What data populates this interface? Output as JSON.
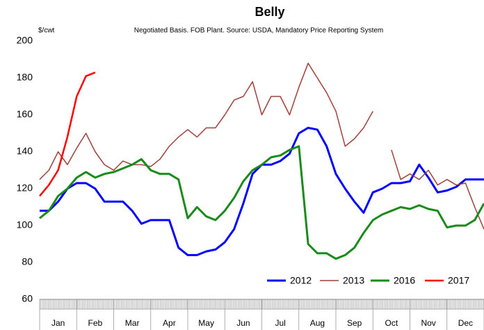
{
  "chart_data": {
    "type": "line",
    "title": "Belly",
    "subtitle": "Negotiated Basis. FOB Plant. Source: USDA, Mandatory Price Reporting System",
    "y_label": "$/cwt",
    "x": [
      0,
      0.25,
      0.5,
      0.75,
      1,
      1.25,
      1.5,
      1.75,
      2,
      2.25,
      2.5,
      2.75,
      3,
      3.25,
      3.5,
      3.75,
      4,
      4.25,
      4.5,
      4.75,
      5,
      5.25,
      5.5,
      5.75,
      6,
      6.25,
      6.5,
      6.75,
      7,
      7.25,
      7.5,
      7.75,
      8,
      8.25,
      8.5,
      8.75,
      9,
      9.25,
      9.5,
      9.75,
      10,
      10.25,
      10.5,
      10.75,
      11,
      11.25,
      11.5,
      11.75,
      12
    ],
    "xlim": [
      0,
      12
    ],
    "xticks": [
      {
        "value": 0.5,
        "label": "Jan"
      },
      {
        "value": 1.5,
        "label": "Feb"
      },
      {
        "value": 2.5,
        "label": "Mar"
      },
      {
        "value": 3.5,
        "label": "Apr"
      },
      {
        "value": 4.5,
        "label": "May"
      },
      {
        "value": 5.5,
        "label": "Jun"
      },
      {
        "value": 6.5,
        "label": "Jul"
      },
      {
        "value": 7.5,
        "label": "Aug"
      },
      {
        "value": 8.5,
        "label": "Sep"
      },
      {
        "value": 9.5,
        "label": "Oct"
      },
      {
        "value": 10.5,
        "label": "Nov"
      },
      {
        "value": 11.5,
        "label": "Dec"
      }
    ],
    "ylim": [
      60,
      200
    ],
    "yticks": [
      60,
      80,
      100,
      120,
      140,
      160,
      180,
      200
    ],
    "legend": "lower right",
    "series": [
      {
        "name": "2012",
        "color": "#0000ff",
        "width": 3,
        "values": [
          108,
          108,
          113,
          120,
          123,
          123,
          120,
          113,
          113,
          113,
          108,
          101,
          103,
          103,
          103,
          88,
          84,
          84,
          86,
          87,
          91,
          98,
          112,
          128,
          133,
          133,
          135,
          139,
          150,
          153,
          152,
          143,
          128,
          120,
          113,
          107,
          118,
          120,
          123,
          123,
          124,
          133,
          126,
          118,
          119,
          121,
          125,
          125,
          125
        ]
      },
      {
        "name": "2013",
        "color": "#a0403a",
        "width": 1.5,
        "values": [
          125,
          130,
          140,
          133,
          142,
          150,
          140,
          133,
          130,
          135,
          133,
          133,
          132,
          136,
          143,
          148,
          152,
          148,
          153,
          153,
          160,
          168,
          170,
          178,
          160,
          170,
          170,
          160,
          175,
          188,
          180,
          172,
          162,
          143,
          147,
          153,
          162,
          null,
          141,
          125,
          128,
          125,
          130,
          122,
          125,
          122,
          123,
          110,
          98
        ]
      },
      {
        "name": "2016",
        "color": "#1a8a1a",
        "width": 3,
        "values": [
          104,
          108,
          116,
          120,
          126,
          129,
          126,
          128,
          129,
          131,
          133,
          136,
          130,
          128,
          128,
          125,
          104,
          110,
          105,
          103,
          108,
          115,
          124,
          130,
          133,
          137,
          138,
          141,
          143,
          90,
          85,
          85,
          82,
          84,
          88,
          96,
          103,
          106,
          108,
          110,
          109,
          111,
          109,
          108,
          99,
          100,
          100,
          103,
          112
        ]
      },
      {
        "name": "2017",
        "color": "#ff0000",
        "width": 2.5,
        "values": [
          116,
          122,
          130,
          148,
          170,
          181,
          183,
          null,
          null,
          null,
          null,
          null,
          null,
          null,
          null,
          null,
          null,
          null,
          null,
          null,
          null,
          null,
          null,
          null,
          null,
          null,
          null,
          null,
          null,
          null,
          null,
          null,
          null,
          null,
          null,
          null,
          null,
          null,
          null,
          null,
          null,
          null,
          null,
          null,
          null,
          null,
          null,
          null,
          null
        ]
      }
    ]
  }
}
